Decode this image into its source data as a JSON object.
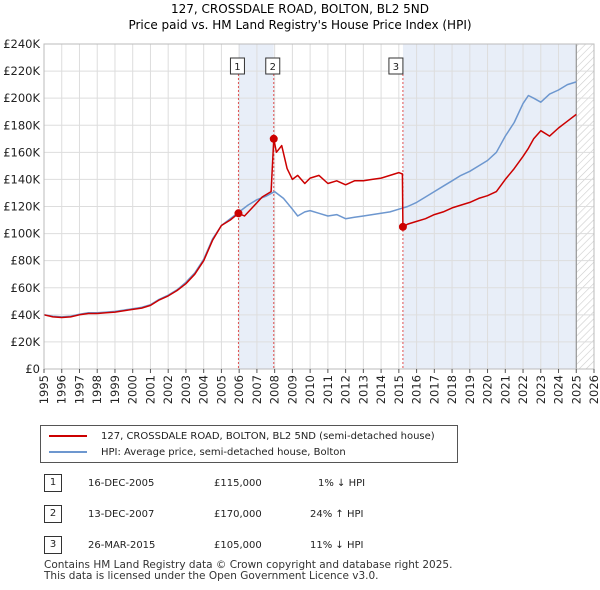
{
  "chart_data": {
    "type": "line",
    "title": "127, CROSSDALE ROAD, BOLTON, BL2 5ND",
    "subtitle": "Price paid vs. HM Land Registry's House Price Index (HPI)",
    "xlabel": "",
    "ylabel": "",
    "xlim": [
      1995,
      2026
    ],
    "ylim": [
      0,
      240000
    ],
    "y_ticks": [
      0,
      20000,
      40000,
      60000,
      80000,
      100000,
      120000,
      140000,
      160000,
      180000,
      200000,
      220000,
      240000
    ],
    "y_tick_labels": [
      "£0",
      "£20K",
      "£40K",
      "£60K",
      "£80K",
      "£100K",
      "£120K",
      "£140K",
      "£160K",
      "£180K",
      "£200K",
      "£220K",
      "£240K"
    ],
    "x_ticks": [
      1995,
      1996,
      1997,
      1998,
      1999,
      2000,
      2001,
      2002,
      2003,
      2004,
      2005,
      2006,
      2007,
      2008,
      2009,
      2010,
      2011,
      2012,
      2013,
      2014,
      2015,
      2016,
      2017,
      2018,
      2019,
      2020,
      2021,
      2022,
      2023,
      2024,
      2025,
      2026
    ],
    "x_tick_labels": [
      "1995",
      "1996",
      "1997",
      "1998",
      "1999",
      "2000",
      "2001",
      "2002",
      "2003",
      "2004",
      "2005",
      "2006",
      "2007",
      "2008",
      "2009",
      "2010",
      "2011",
      "2012",
      "2013",
      "2014",
      "2015",
      "2016",
      "2017",
      "2018",
      "2019",
      "2020",
      "2021",
      "2022",
      "2023",
      "2024",
      "2025",
      "2026"
    ],
    "grid": true,
    "legend_position": "below",
    "data_end_year": 2025.0,
    "series": [
      {
        "name": "127, CROSSDALE ROAD, BOLTON, BL2 5ND (semi-detached house)",
        "color": "#cc0000",
        "x": [
          1995.0,
          1995.5,
          1996.0,
          1996.5,
          1997.0,
          1997.5,
          1998.0,
          1998.5,
          1999.0,
          1999.5,
          2000.0,
          2000.5,
          2001.0,
          2001.5,
          2002.0,
          2002.5,
          2003.0,
          2003.5,
          2004.0,
          2004.5,
          2005.0,
          2005.5,
          2005.96,
          2006.3,
          2006.8,
          2007.3,
          2007.8,
          2007.95,
          2008.1,
          2008.4,
          2008.7,
          2009.0,
          2009.3,
          2009.7,
          2010.0,
          2010.5,
          2011.0,
          2011.5,
          2012.0,
          2012.5,
          2013.0,
          2013.5,
          2014.0,
          2014.5,
          2015.0,
          2015.2,
          2015.23,
          2015.5,
          2016.0,
          2016.5,
          2017.0,
          2017.5,
          2018.0,
          2018.5,
          2019.0,
          2019.5,
          2020.0,
          2020.5,
          2021.0,
          2021.5,
          2022.0,
          2022.3,
          2022.6,
          2023.0,
          2023.5,
          2024.0,
          2024.5,
          2025.0
        ],
        "values": [
          40000,
          38500,
          38000,
          38500,
          40000,
          41000,
          41000,
          41500,
          42000,
          43000,
          44000,
          45000,
          47000,
          51000,
          54000,
          58000,
          63000,
          70000,
          80000,
          95000,
          106000,
          110000,
          115000,
          113000,
          120000,
          127000,
          131000,
          170000,
          160000,
          165000,
          148000,
          140000,
          143000,
          137000,
          141000,
          143000,
          137000,
          139000,
          136000,
          139000,
          139000,
          140000,
          141000,
          143000,
          145000,
          144000,
          105000,
          107000,
          109000,
          111000,
          114000,
          116000,
          119000,
          121000,
          123000,
          126000,
          128000,
          131000,
          140000,
          148000,
          157000,
          163000,
          170000,
          176000,
          172000,
          178000,
          183000,
          188000
        ]
      },
      {
        "name": "HPI: Average price, semi-detached house, Bolton",
        "color": "#6d97cf",
        "x": [
          1995.0,
          1995.5,
          1996.0,
          1996.5,
          1997.0,
          1997.5,
          1998.0,
          1998.5,
          1999.0,
          1999.5,
          2000.0,
          2000.5,
          2001.0,
          2001.5,
          2002.0,
          2002.5,
          2003.0,
          2003.5,
          2004.0,
          2004.5,
          2005.0,
          2005.5,
          2006.0,
          2006.5,
          2007.0,
          2007.5,
          2008.0,
          2008.5,
          2009.0,
          2009.3,
          2009.7,
          2010.0,
          2010.5,
          2011.0,
          2011.5,
          2012.0,
          2012.5,
          2013.0,
          2013.5,
          2014.0,
          2014.5,
          2015.0,
          2015.5,
          2016.0,
          2016.5,
          2017.0,
          2017.5,
          2018.0,
          2018.5,
          2019.0,
          2019.5,
          2020.0,
          2020.5,
          2021.0,
          2021.5,
          2022.0,
          2022.3,
          2022.6,
          2023.0,
          2023.5,
          2024.0,
          2024.5,
          2025.0
        ],
        "values": [
          40000,
          39000,
          38500,
          39000,
          40500,
          41500,
          41500,
          42000,
          42500,
          43500,
          44500,
          45500,
          47500,
          51500,
          54500,
          58500,
          64000,
          71000,
          81000,
          96000,
          106000,
          111000,
          116000,
          121000,
          125000,
          127500,
          131000,
          126000,
          118000,
          113000,
          116000,
          117000,
          115000,
          113000,
          114000,
          111000,
          112000,
          113000,
          114000,
          115000,
          116000,
          118000,
          120000,
          123000,
          127000,
          131000,
          135000,
          139000,
          143000,
          146000,
          150000,
          154000,
          160000,
          172000,
          182000,
          196000,
          202000,
          200000,
          197000,
          203000,
          206000,
          210000,
          212000
        ]
      }
    ],
    "sales": [
      {
        "label": "1",
        "x": 2005.96,
        "value": 115000
      },
      {
        "label": "2",
        "x": 2007.95,
        "value": 170000
      },
      {
        "label": "3",
        "x": 2015.23,
        "value": 105000
      }
    ]
  },
  "legend": {
    "property_label": "127, CROSSDALE ROAD, BOLTON, BL2 5ND (semi-detached house)",
    "hpi_label": "HPI: Average price, semi-detached house, Bolton"
  },
  "transactions": [
    {
      "num": "1",
      "date": "16-DEC-2005",
      "price": "£115,000",
      "hpi": "1% ↓ HPI"
    },
    {
      "num": "2",
      "date": "13-DEC-2007",
      "price": "£170,000",
      "hpi": "24% ↑ HPI"
    },
    {
      "num": "3",
      "date": "26-MAR-2015",
      "price": "£105,000",
      "hpi": "11% ↓ HPI"
    }
  ],
  "footer": {
    "line1": "Contains HM Land Registry data © Crown copyright and database right 2025.",
    "line2": "This data is licensed under the Open Government Licence v3.0."
  }
}
